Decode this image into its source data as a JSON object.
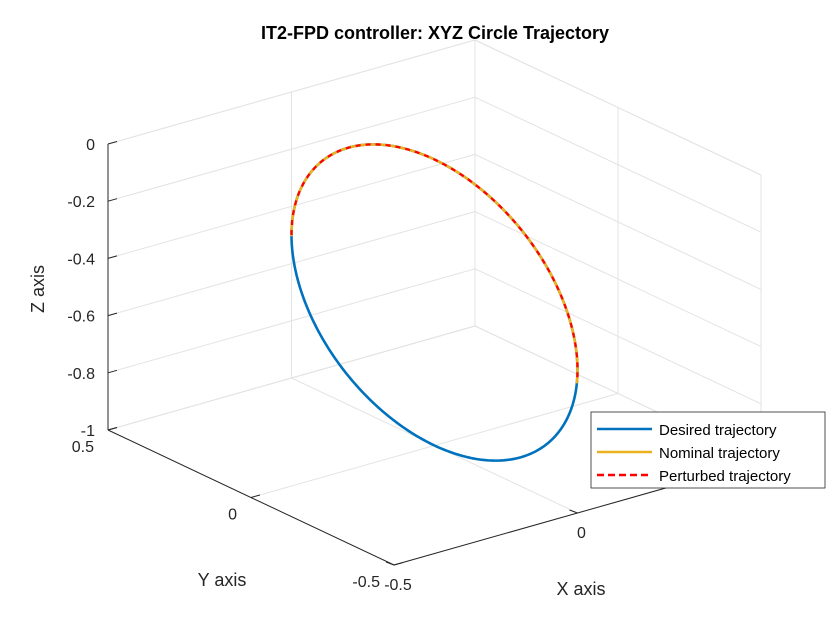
{
  "chart_data": {
    "type": "line3d",
    "title": "IT2-FPD controller: XYZ Circle Trajectory",
    "xlabel": "X axis",
    "ylabel": "Y axis",
    "zlabel": "Z axis",
    "xlim": [
      -0.5,
      0.5
    ],
    "ylim": [
      -0.5,
      0.5
    ],
    "zlim": [
      -1,
      0
    ],
    "xticks": [
      {
        "value": -0.5,
        "label": "-0.5"
      },
      {
        "value": 0,
        "label": "0"
      }
    ],
    "yticks": [
      {
        "value": -0.5,
        "label": "-0.5"
      },
      {
        "value": 0,
        "label": "0"
      },
      {
        "value": 0.5,
        "label": "0.5"
      }
    ],
    "zticks": [
      {
        "value": 0,
        "label": "0"
      },
      {
        "value": -0.2,
        "label": "-0.2"
      },
      {
        "value": -0.4,
        "label": "-0.4"
      },
      {
        "value": -0.6,
        "label": "-0.6"
      },
      {
        "value": -0.8,
        "label": "-0.8"
      },
      {
        "value": -1,
        "label": "-1"
      }
    ],
    "grid": true,
    "legend_position": "bottom-right",
    "series": [
      {
        "name": "Desired trajectory",
        "color": "#0072bd",
        "style": "solid",
        "param_range": [
          0,
          360
        ]
      },
      {
        "name": "Nominal trajectory",
        "color": "#edb120",
        "style": "solid",
        "param_range": [
          0,
          185
        ]
      },
      {
        "name": "Perturbed trajectory",
        "color": "#ff0000",
        "style": "dashed",
        "param_range": [
          0,
          185
        ]
      }
    ],
    "circle": {
      "center": [
        0,
        0,
        -0.5
      ],
      "radius": 0.5,
      "angle_unit": "deg"
    }
  }
}
